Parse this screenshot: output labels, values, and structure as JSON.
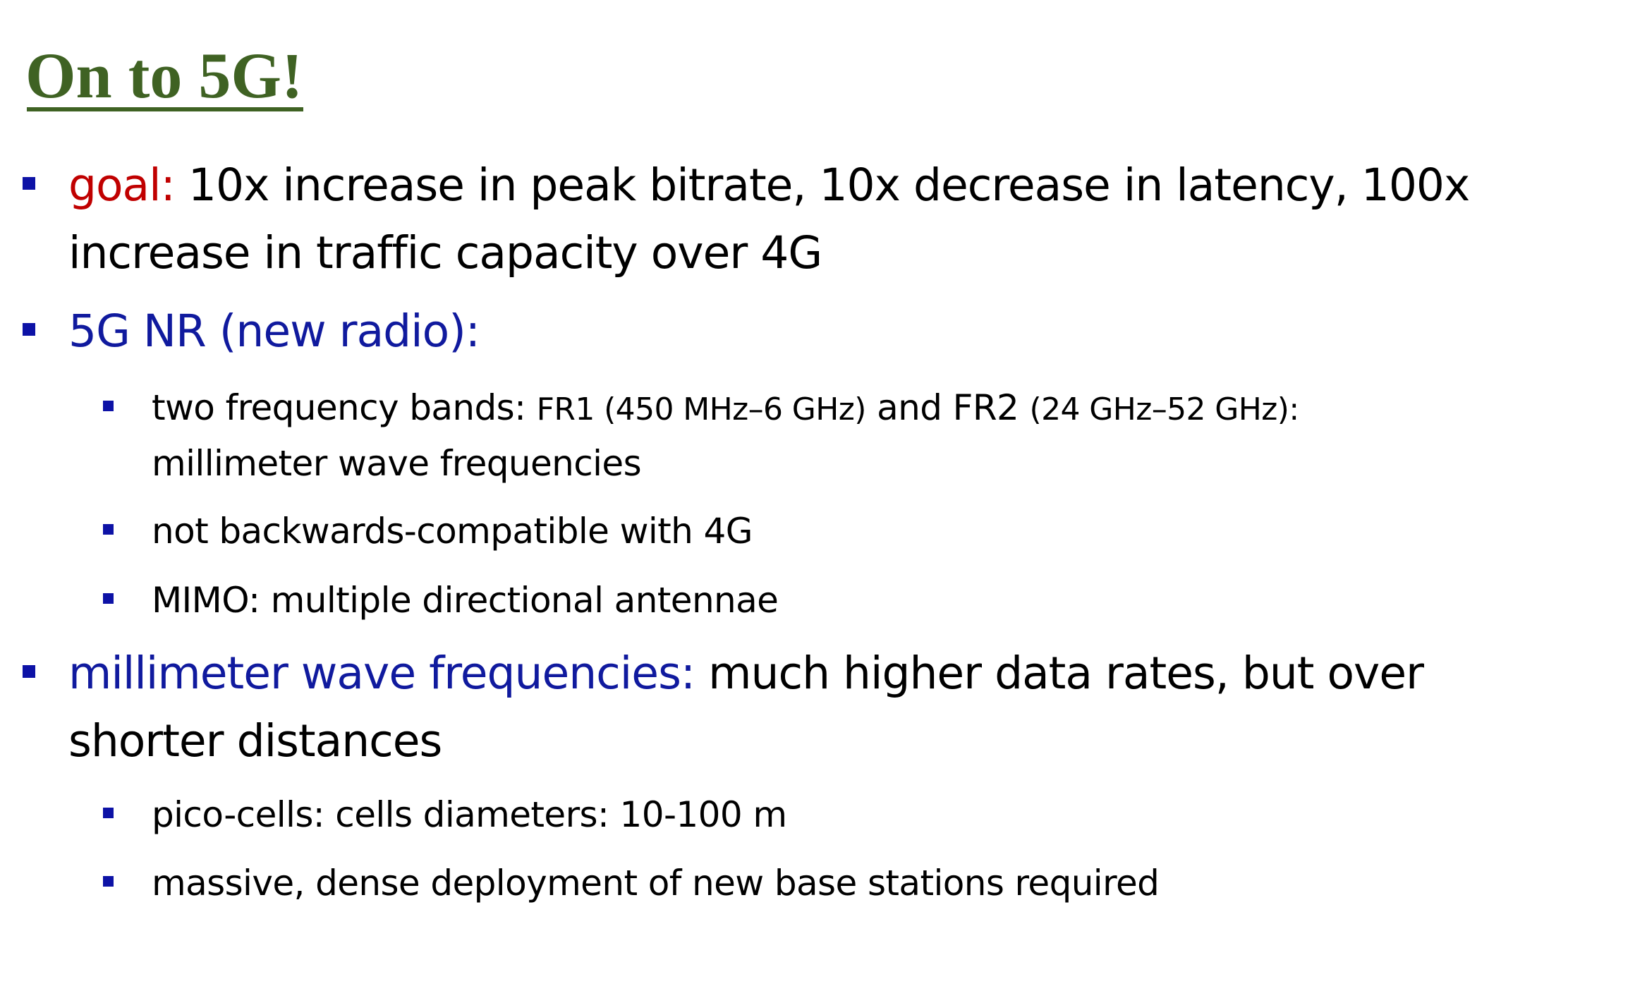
{
  "slide": {
    "title": "On to 5G!",
    "bullets": {
      "goal": {
        "label": "goal:",
        "line1": " 10x increase in peak bitrate, 10x decrease in latency, 100x",
        "line2": "increase in traffic capacity over 4G"
      },
      "nr": {
        "label": "5G NR (new radio):",
        "sub": {
          "bands": {
            "part1": "two frequency bands: ",
            "part2": "FR1 (450 MHz–6 GHz)",
            "part3": " and FR2 ",
            "part4": "(24 GHz–52 GHz):",
            "line2": "millimeter wave frequencies"
          },
          "compat": "not backwards-compatible with 4G",
          "mimo": "MIMO: multiple directional antennae"
        }
      },
      "mmwave": {
        "label": "millimeter wave frequencies:",
        "line1": " much higher data rates, but over",
        "line2": "shorter distances",
        "sub": {
          "pico": "pico-cells: cells diameters: 10-100 m",
          "massive": "massive, dense deployment of new base stations required"
        }
      }
    }
  },
  "colors": {
    "title": "#3f6223",
    "bullet_marker": "#0d12a6",
    "goal_label": "#c00000",
    "blue_label": "#101a9e"
  }
}
